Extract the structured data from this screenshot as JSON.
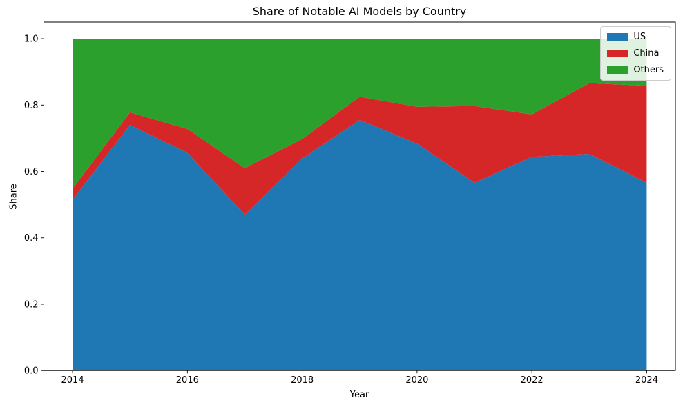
{
  "chart_data": {
    "type": "area",
    "stacked": true,
    "normalized": true,
    "title": "Share of Notable AI Models by Country",
    "xlabel": "Year",
    "ylabel": "Share",
    "x": [
      2014,
      2015,
      2016,
      2017,
      2018,
      2019,
      2020,
      2021,
      2022,
      2023,
      2024
    ],
    "series": [
      {
        "name": "US",
        "color": "#1f77b4",
        "values": [
          0.515,
          0.74,
          0.656,
          0.47,
          0.639,
          0.755,
          0.684,
          0.566,
          0.644,
          0.653,
          0.566
        ]
      },
      {
        "name": "China",
        "color": "#d62728",
        "values": [
          0.033,
          0.038,
          0.072,
          0.14,
          0.059,
          0.07,
          0.111,
          0.231,
          0.128,
          0.213,
          0.292
        ]
      },
      {
        "name": "Others",
        "color": "#2ca02c",
        "values": [
          0.452,
          0.222,
          0.272,
          0.39,
          0.302,
          0.175,
          0.205,
          0.203,
          0.228,
          0.134,
          0.142
        ]
      }
    ],
    "xticks": {
      "values": [
        2014,
        2016,
        2018,
        2020,
        2022,
        2024
      ],
      "labels": [
        "2014",
        "2016",
        "2018",
        "2020",
        "2022",
        "2024"
      ]
    },
    "yticks": {
      "values": [
        0.0,
        0.2,
        0.4,
        0.6,
        0.8,
        1.0
      ],
      "labels": [
        "0.0",
        "0.2",
        "0.4",
        "0.6",
        "0.8",
        "1.0"
      ]
    },
    "xlim": [
      2013.5,
      2024.5
    ],
    "ylim": [
      0,
      1.05
    ],
    "grid": false,
    "legend_position": "upper right",
    "axis_color": "#000000"
  }
}
